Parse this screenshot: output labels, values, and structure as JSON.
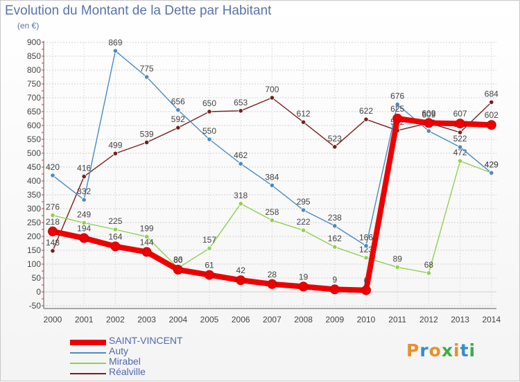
{
  "chart_data": {
    "type": "line",
    "title": "Evolution du Montant de la Dette par Habitant",
    "subtitle": "(en €)",
    "xlabel": "",
    "ylabel": "",
    "categories": [
      "2000",
      "2001",
      "2002",
      "2003",
      "2004",
      "2005",
      "2006",
      "2007",
      "2008",
      "2009",
      "2010",
      "2011",
      "2012",
      "2013",
      "2014"
    ],
    "yticks": [
      -50,
      0,
      50,
      100,
      150,
      200,
      250,
      300,
      350,
      400,
      450,
      500,
      550,
      600,
      650,
      700,
      750,
      800,
      850,
      900
    ],
    "ylim": [
      -50,
      900
    ],
    "grid": true,
    "legend": "bottom-left",
    "series": [
      {
        "name": "Réalville",
        "color": "#7b1e1e",
        "values": [
          148,
          416,
          499,
          539,
          592,
          650,
          653,
          700,
          612,
          523,
          622,
          582,
          609,
          575,
          684
        ],
        "labels": [
          "148",
          "416",
          "499",
          "539",
          "592",
          "650",
          "653",
          "700",
          "612",
          "523",
          "622",
          "582",
          "609",
          "575",
          "684"
        ]
      },
      {
        "name": "Mirabel",
        "color": "#8fd150",
        "values": [
          276,
          249,
          225,
          199,
          86,
          157,
          318,
          258,
          222,
          162,
          123,
          89,
          68,
          472,
          429
        ],
        "labels": [
          "276",
          "249",
          "225",
          "199",
          "86",
          "157",
          "318",
          "258",
          "222",
          "162",
          "123",
          "89",
          "68",
          "472",
          "429"
        ]
      },
      {
        "name": "Auty",
        "color": "#4a8ac2",
        "values": [
          420,
          332,
          869,
          775,
          656,
          550,
          462,
          384,
          295,
          238,
          166,
          676,
          580,
          522,
          429
        ],
        "labels": [
          "420",
          "332",
          "869",
          "775",
          "656",
          "550",
          "462",
          "384",
          "295",
          "238",
          "166",
          "676",
          "580",
          "522",
          "429"
        ]
      },
      {
        "name": "SAINT-VINCENT",
        "color": "#ee0000",
        "values": [
          218,
          194,
          164,
          144,
          80,
          61,
          42,
          28,
          19,
          9,
          6,
          625,
          609,
          607,
          602
        ],
        "labels": [
          "218",
          "194",
          "164",
          "144",
          "80",
          "61",
          "42",
          "28",
          "19",
          "9",
          "6",
          "625",
          "609",
          "607",
          "602"
        ]
      }
    ],
    "legend_order": [
      "SAINT-VINCENT",
      "Auty",
      "Mirabel",
      "Réalville"
    ]
  },
  "brand": {
    "letters": [
      "P",
      "r",
      "o",
      "x",
      "i",
      "t",
      "i"
    ],
    "colors": [
      "#e8902a",
      "#2f8ed0",
      "#e8902a",
      "#3fae3f",
      "#e8902a",
      "#2f8ed0",
      "#3fae3f"
    ]
  }
}
